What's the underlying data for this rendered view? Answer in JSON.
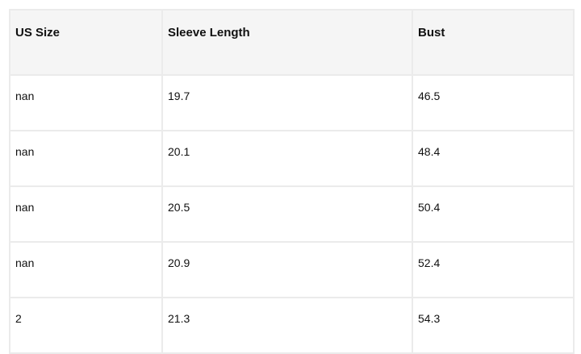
{
  "table": {
    "headers": [
      "US Size",
      "Sleeve Length",
      "Bust"
    ],
    "rows": [
      [
        "nan",
        "19.7",
        "46.5"
      ],
      [
        "nan",
        "20.1",
        "48.4"
      ],
      [
        "nan",
        "20.5",
        "50.4"
      ],
      [
        "nan",
        "20.9",
        "52.4"
      ],
      [
        "2",
        "21.3",
        "54.3"
      ]
    ]
  }
}
